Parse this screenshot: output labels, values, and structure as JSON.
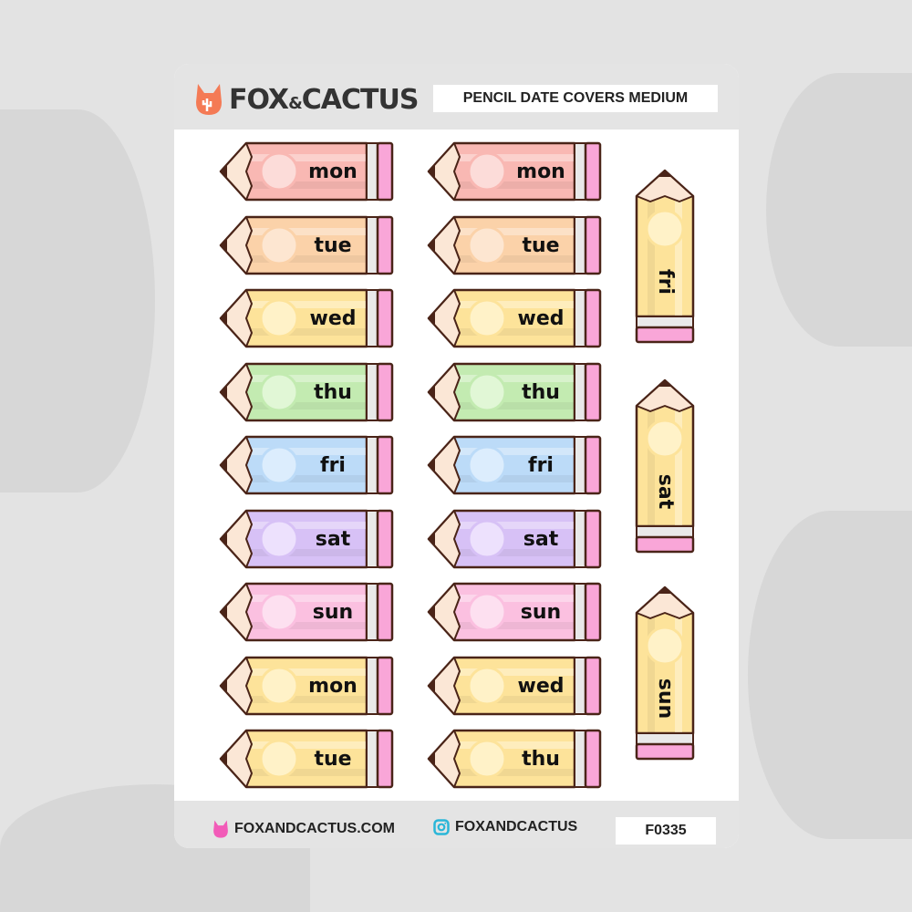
{
  "brand": {
    "name_left": "FOX",
    "amp": "&",
    "name_right": "CACTUS",
    "logo_color": "#f47a55"
  },
  "header": {
    "title": "PENCIL DATE COVERS MEDIUM"
  },
  "footer": {
    "website": "FOXANDCACTUS.COM",
    "instagram": "FOXANDCACTUS",
    "product_code": "F0335",
    "website_icon_color": "#f25bb8",
    "instagram_icon_color": "#29b6d8"
  },
  "colors": {
    "red": [
      "#f9b8b3",
      "#fcdcd9"
    ],
    "orange": [
      "#fbd2a9",
      "#fde6d1"
    ],
    "yellow": [
      "#fde39a",
      "#fff2c8"
    ],
    "green": [
      "#c3ebb1",
      "#e1f7d6"
    ],
    "blue": [
      "#bcdbf8",
      "#dcedfd"
    ],
    "purple": [
      "#d7c1f6",
      "#ede1fd"
    ],
    "pink": [
      "#fbc0e0",
      "#fde0f0"
    ],
    "outline": "#4a2418",
    "eraser": "#f9a6d8"
  },
  "horizontal_pencils": [
    [
      {
        "label": "mon",
        "color": "red"
      },
      {
        "label": "tue",
        "color": "orange"
      },
      {
        "label": "wed",
        "color": "yellow"
      },
      {
        "label": "thu",
        "color": "green"
      },
      {
        "label": "fri",
        "color": "blue"
      },
      {
        "label": "sat",
        "color": "purple"
      },
      {
        "label": "sun",
        "color": "pink"
      },
      {
        "label": "mon",
        "color": "yellow"
      },
      {
        "label": "tue",
        "color": "yellow"
      }
    ],
    [
      {
        "label": "mon",
        "color": "red"
      },
      {
        "label": "tue",
        "color": "orange"
      },
      {
        "label": "wed",
        "color": "yellow"
      },
      {
        "label": "thu",
        "color": "green"
      },
      {
        "label": "fri",
        "color": "blue"
      },
      {
        "label": "sat",
        "color": "purple"
      },
      {
        "label": "sun",
        "color": "pink"
      },
      {
        "label": "wed",
        "color": "yellow"
      },
      {
        "label": "thu",
        "color": "yellow"
      }
    ]
  ],
  "vertical_pencils": [
    {
      "label": "fri",
      "color": "yellow"
    },
    {
      "label": "sat",
      "color": "yellow"
    },
    {
      "label": "sun",
      "color": "yellow"
    }
  ]
}
